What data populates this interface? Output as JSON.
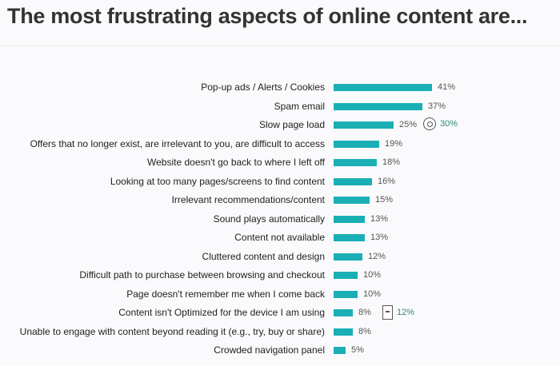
{
  "title": "The most frustrating aspects of online content are...",
  "colors": {
    "bar": "#1aafb5",
    "highlight": "#2a8a70"
  },
  "chart_data": {
    "type": "bar",
    "orientation": "horizontal",
    "title": "The most frustrating aspects of online content are...",
    "xlabel": "",
    "ylabel": "",
    "grid": false,
    "categories": [
      "Pop-up ads / Alerts / Cookies",
      "Spam email",
      "Slow page load",
      "Offers that no longer exist, are irrelevant to you, are difficult to access",
      "Website doesn't go back to where I left off",
      "Looking at too many pages/screens to find content",
      "Irrelevant recommendations/content",
      "Sound plays automatically",
      "Content not available",
      "Cluttered content and design",
      "Difficult path to purchase between browsing and checkout",
      "Page doesn't remember me when I come back",
      "Content isn't Optimized for the device I am using",
      "Unable to engage with content beyond reading it (e.g., try, buy or share)",
      "Crowded navigation panel"
    ],
    "values": [
      41,
      37,
      25,
      19,
      18,
      16,
      15,
      13,
      13,
      12,
      10,
      10,
      8,
      8,
      5
    ],
    "annotations": [
      {
        "category": "Slow page load",
        "icon": "disc-icon",
        "value": 30,
        "label": "30%"
      },
      {
        "category": "Content isn't Optimized for the device I am using",
        "icon": "mobile-device-icon",
        "value": 12,
        "label": "12%"
      }
    ]
  },
  "rows": [
    {
      "label": "Pop-up ads / Alerts / Cookies",
      "value": "41%"
    },
    {
      "label": "Spam email",
      "value": "37%"
    },
    {
      "label": "Slow page load",
      "value": "25%",
      "extra": "30%"
    },
    {
      "label": "Offers that no longer exist, are irrelevant to you, are difficult to access",
      "value": "19%"
    },
    {
      "label": "Website doesn't go back to where I left off",
      "value": "18%"
    },
    {
      "label": "Looking at too many pages/screens to find content",
      "value": "16%"
    },
    {
      "label": "Irrelevant recommendations/content",
      "value": "15%"
    },
    {
      "label": "Sound plays automatically",
      "value": "13%"
    },
    {
      "label": "Content not available",
      "value": "13%"
    },
    {
      "label": "Cluttered content and design",
      "value": "12%"
    },
    {
      "label": "Difficult path to purchase between browsing and checkout",
      "value": "10%"
    },
    {
      "label": "Page doesn't remember me when I come back",
      "value": "10%"
    },
    {
      "label": "Content isn't Optimized for the device I am using",
      "value": "8%",
      "extra": "12%"
    },
    {
      "label": "Unable to engage with content beyond reading it (e.g., try, buy or share)",
      "value": "8%"
    },
    {
      "label": "Crowded navigation panel",
      "value": "5%"
    }
  ]
}
